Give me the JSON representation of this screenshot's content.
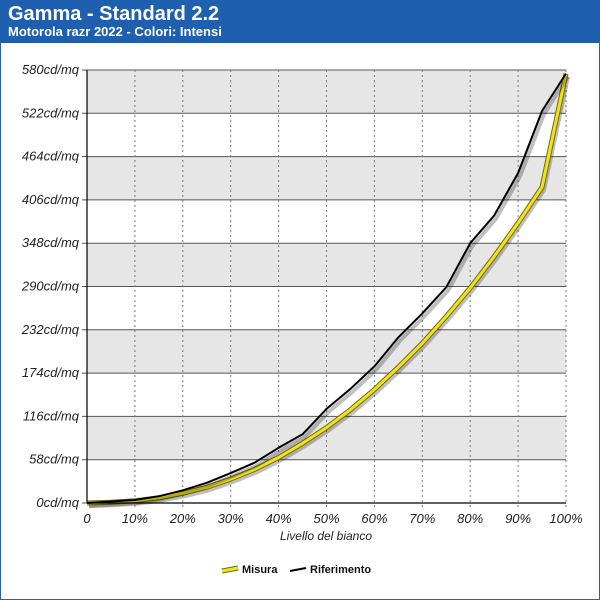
{
  "header": {
    "title": "Gamma - Standard 2.2",
    "subtitle": "Motorola razr 2022 - Colori: Intensi"
  },
  "chart_data": {
    "type": "line",
    "xlabel": "Livello del bianco",
    "ylabel": "",
    "x_ticks": [
      "0",
      "10%",
      "20%",
      "30%",
      "40%",
      "50%",
      "60%",
      "70%",
      "80%",
      "90%",
      "100%"
    ],
    "y_ticks": [
      "0cd/mq",
      "58cd/mq",
      "116cd/mq",
      "174cd/mq",
      "232cd/mq",
      "290cd/mq",
      "348cd/mq",
      "406cd/mq",
      "464cd/mq",
      "522cd/mq",
      "580cd/mq"
    ],
    "xlim": [
      0,
      100
    ],
    "ylim": [
      0,
      580
    ],
    "grid": true,
    "legend_position": "bottom",
    "series": [
      {
        "name": "Misura",
        "color": "#f2e21a",
        "x": [
          0,
          5,
          10,
          15,
          20,
          25,
          30,
          35,
          40,
          45,
          50,
          55,
          60,
          65,
          70,
          75,
          80,
          85,
          90,
          95,
          100
        ],
        "y": [
          0,
          1,
          3,
          7,
          13,
          21,
          32,
          45,
          61,
          80,
          101,
          125,
          152,
          182,
          214,
          250,
          288,
          330,
          375,
          423,
          575
        ]
      },
      {
        "name": "Riferimento",
        "color": "#000000",
        "x": [
          0,
          5,
          10,
          15,
          20,
          25,
          30,
          35,
          40,
          45,
          50,
          55,
          60,
          65,
          70,
          75,
          80,
          85,
          90,
          95,
          100
        ],
        "y": [
          0,
          2,
          4,
          9,
          17,
          27,
          40,
          54,
          74,
          92,
          126,
          153,
          183,
          222,
          254,
          289,
          348,
          385,
          442,
          525,
          575
        ]
      }
    ]
  }
}
